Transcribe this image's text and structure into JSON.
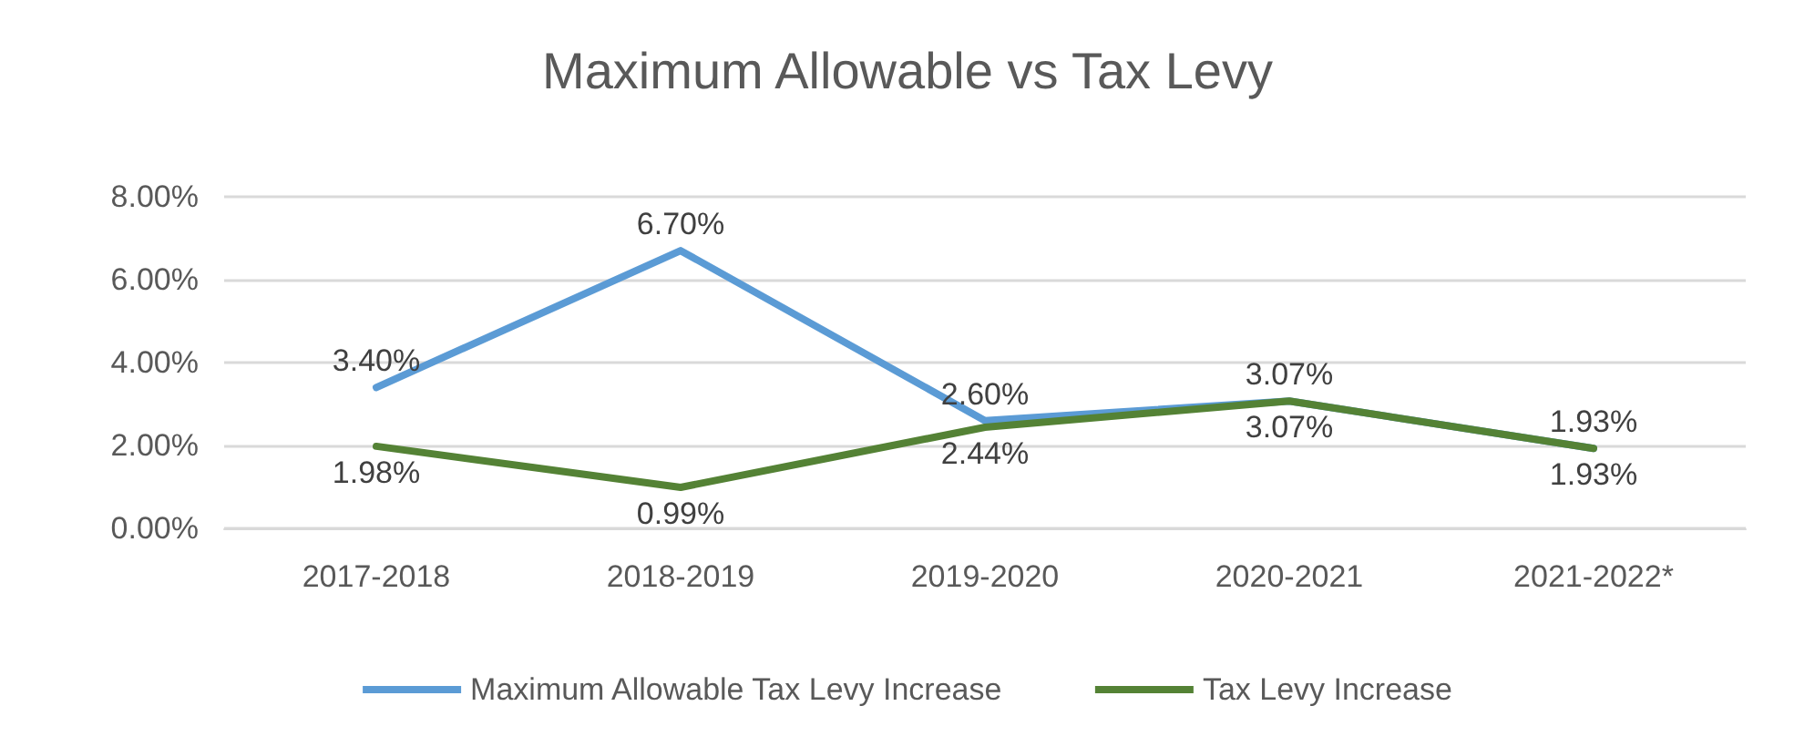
{
  "chart_data": {
    "type": "line",
    "title": "Maximum Allowable vs Tax Levy",
    "categories": [
      "2017-2018",
      "2018-2019",
      "2019-2020",
      "2020-2021",
      "2021-2022*"
    ],
    "series": [
      {
        "name": "Maximum Allowable Tax Levy Increase",
        "color": "#5b9bd5",
        "values": [
          3.4,
          6.7,
          2.6,
          3.07,
          1.93
        ],
        "value_labels": [
          "3.40%",
          "6.70%",
          "2.60%",
          "3.07%",
          "1.93%"
        ]
      },
      {
        "name": "Tax Levy Increase",
        "color": "#548235",
        "values": [
          1.98,
          0.99,
          2.44,
          3.07,
          1.93
        ],
        "value_labels": [
          "1.98%",
          "0.99%",
          "2.44%",
          "3.07%",
          "1.93%"
        ]
      }
    ],
    "ylim": [
      0,
      8
    ],
    "yticks": [
      {
        "value": 0,
        "label": "0.00%"
      },
      {
        "value": 2,
        "label": "2.00%"
      },
      {
        "value": 4,
        "label": "4.00%"
      },
      {
        "value": 6,
        "label": "6.00%"
      },
      {
        "value": 8,
        "label": "8.00%"
      }
    ],
    "grid": "y",
    "legend": "bottom",
    "marker": "none",
    "line_style": "solid"
  }
}
